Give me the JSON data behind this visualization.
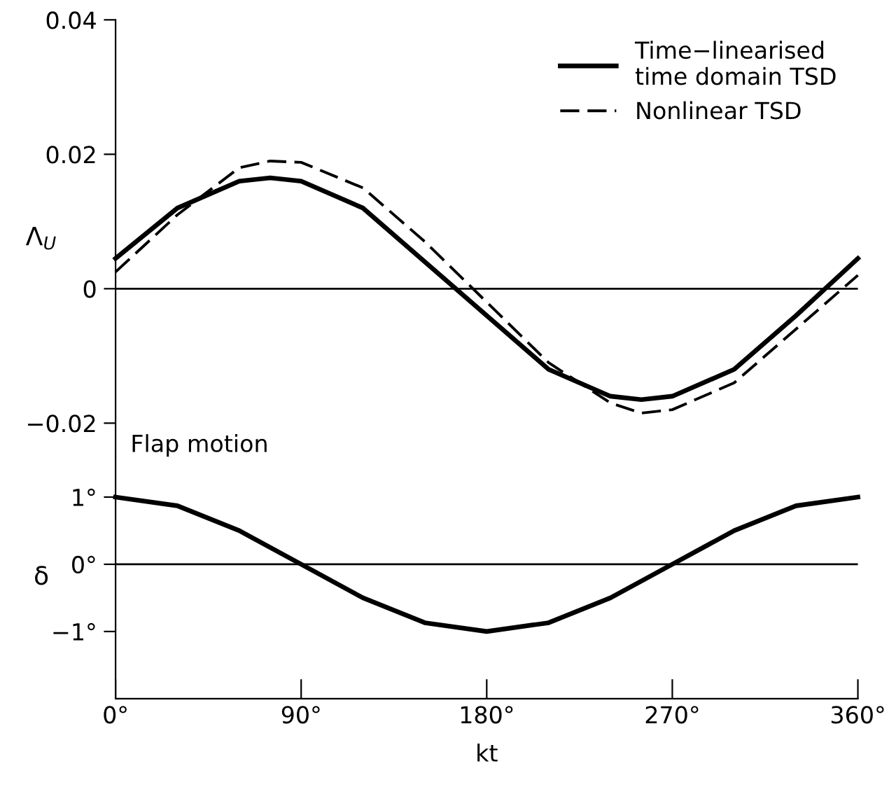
{
  "chart_data": [
    {
      "type": "line",
      "ylabel": "Λ$_{U}$",
      "x": [
        0,
        30,
        60,
        75,
        90,
        120,
        150,
        180,
        210,
        240,
        255,
        270,
        300,
        330,
        360
      ],
      "xlim": [
        0,
        360
      ],
      "ylim": [
        -0.025,
        0.04
      ],
      "yticks": [
        {
          "value": 0.04,
          "label": "0.04"
        },
        {
          "value": 0.02,
          "label": "0.02"
        },
        {
          "value": 0,
          "label": "0"
        },
        {
          "value": -0.02,
          "label": "−0.02"
        }
      ],
      "tick_labels": "y",
      "legend": "top right",
      "grid": false,
      "ref_lines": [
        {
          "axis": "y",
          "value": 0,
          "color": "#000000"
        }
      ],
      "series": [
        {
          "name": "Time−linearised\ntime domain TSD",
          "color": "#000000",
          "line_style": "solid",
          "values": [
            0.0045,
            0.012,
            0.016,
            0.0165,
            0.016,
            0.012,
            0.004,
            -0.004,
            -0.012,
            -0.016,
            -0.0165,
            -0.016,
            -0.012,
            -0.004,
            0.0045
          ]
        },
        {
          "name": "Nonlinear TSD",
          "color": "#000000",
          "line_style": "dashed",
          "values": [
            0.0025,
            0.011,
            0.018,
            0.019,
            0.0188,
            0.015,
            0.007,
            -0.002,
            -0.011,
            -0.017,
            -0.0185,
            -0.018,
            -0.014,
            -0.006,
            0.002
          ]
        }
      ]
    },
    {
      "type": "line",
      "title": "Flap motion",
      "ylabel": "δ",
      "xlabel": "kt",
      "x": [
        0,
        30,
        60,
        90,
        120,
        150,
        180,
        210,
        240,
        270,
        300,
        330,
        360
      ],
      "xlim": [
        0,
        360
      ],
      "xticks": [
        {
          "value": 0,
          "label": "0°"
        },
        {
          "value": 90,
          "label": "90°"
        },
        {
          "value": 180,
          "label": "180°"
        },
        {
          "value": 270,
          "label": "270°"
        },
        {
          "value": 360,
          "label": "360°"
        }
      ],
      "ylim": [
        -2,
        1.6
      ],
      "yticks": [
        {
          "value": 1,
          "label": "1°"
        },
        {
          "value": 0,
          "label": "0°"
        },
        {
          "value": -1,
          "label": "−1°"
        }
      ],
      "grid": false,
      "ref_lines": [
        {
          "axis": "y",
          "value": 0,
          "color": "#000000"
        }
      ],
      "series": [
        {
          "color": "#000000",
          "line_style": "solid",
          "values": [
            1,
            0.87,
            0.5,
            0,
            -0.5,
            -0.87,
            -1,
            -0.87,
            -0.5,
            0,
            0.5,
            0.87,
            1
          ]
        }
      ]
    }
  ]
}
